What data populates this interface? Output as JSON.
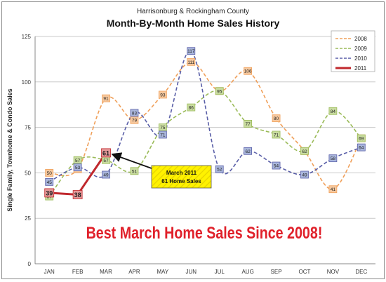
{
  "chart_data": {
    "type": "line",
    "title": "Month-By-Month Home Sales History",
    "subtitle": "Harrisonburg & Rockingham County",
    "xlabel": "",
    "ylabel": "Single Family, Townhome & Condo Sales",
    "ylim": [
      0,
      125
    ],
    "yticks": [
      0,
      25,
      50,
      75,
      100,
      125
    ],
    "grid": true,
    "legend_position": "top-right",
    "categories": [
      "JAN",
      "FEB",
      "MAR",
      "APR",
      "MAY",
      "JUN",
      "JUL",
      "AUG",
      "SEP",
      "OCT",
      "NOV",
      "DEC"
    ],
    "series": [
      {
        "name": "2008",
        "color": "#f0a05a",
        "label_fill": "#f6c89e",
        "dashed": true,
        "values": [
          50,
          52,
          91,
          79,
          93,
          111,
          95,
          106,
          80,
          62,
          41,
          69
        ]
      },
      {
        "name": "2009",
        "color": "#9bbb59",
        "label_fill": "#c9dca0",
        "dashed": true,
        "values": [
          37,
          57,
          57,
          51,
          75,
          86,
          95,
          77,
          71,
          62,
          84,
          69
        ]
      },
      {
        "name": "2010",
        "color": "#5a5fa8",
        "label_fill": "#a9b6dc",
        "dashed": true,
        "values": [
          45,
          53,
          49,
          83,
          71,
          117,
          52,
          62,
          54,
          49,
          58,
          64
        ]
      },
      {
        "name": "2011",
        "color": "#c0282d",
        "label_fill": "#e69a9a",
        "dashed": false,
        "values": [
          39,
          38,
          61,
          null,
          null,
          null,
          null,
          null,
          null,
          null,
          null,
          null
        ]
      }
    ],
    "annotation": {
      "line1": "March 2011",
      "line2": "61 Home Sales"
    },
    "banner": "Best March Home Sales Since 2008!"
  }
}
